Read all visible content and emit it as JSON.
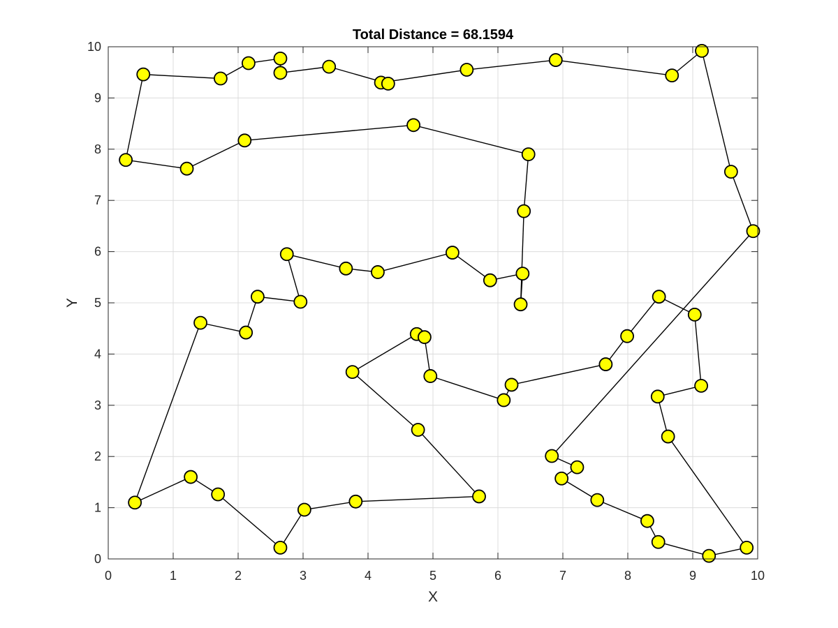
{
  "chart_data": {
    "type": "line",
    "title": "Total Distance = 68.1594",
    "xlabel": "X",
    "ylabel": "Y",
    "xlim": [
      0,
      10
    ],
    "ylim": [
      0,
      10
    ],
    "xticks": [
      "0",
      "1",
      "2",
      "3",
      "4",
      "5",
      "6",
      "7",
      "8",
      "9",
      "10"
    ],
    "yticks": [
      "0",
      "1",
      "2",
      "3",
      "4",
      "5",
      "6",
      "7",
      "8",
      "9",
      "10"
    ],
    "grid": true,
    "line_color": "#000000",
    "marker_color": "#ffff00",
    "marker_edge_color": "#000000",
    "series": [
      {
        "points": [
          [
            6.35,
            4.97
          ],
          [
            6.38,
            5.57
          ],
          [
            5.88,
            5.44
          ],
          [
            5.3,
            5.98
          ],
          [
            4.15,
            5.6
          ],
          [
            3.66,
            5.67
          ],
          [
            2.75,
            5.95
          ],
          [
            2.96,
            5.02
          ],
          [
            2.3,
            5.12
          ],
          [
            2.12,
            4.42
          ],
          [
            1.42,
            4.61
          ],
          [
            0.41,
            1.1
          ],
          [
            1.27,
            1.6
          ],
          [
            1.69,
            1.26
          ],
          [
            2.65,
            0.22
          ],
          [
            3.02,
            0.96
          ],
          [
            3.81,
            1.12
          ],
          [
            5.71,
            1.22
          ],
          [
            4.77,
            2.52
          ],
          [
            3.76,
            3.65
          ],
          [
            4.75,
            4.39
          ],
          [
            4.87,
            4.33
          ],
          [
            4.96,
            3.57
          ],
          [
            6.09,
            3.1
          ],
          [
            6.21,
            3.4
          ],
          [
            7.66,
            3.8
          ],
          [
            7.99,
            4.35
          ],
          [
            8.48,
            5.12
          ],
          [
            9.03,
            4.77
          ],
          [
            9.13,
            3.38
          ],
          [
            8.46,
            3.17
          ],
          [
            8.62,
            2.39
          ],
          [
            9.83,
            0.22
          ],
          [
            9.25,
            0.06
          ],
          [
            8.47,
            0.33
          ],
          [
            8.3,
            0.74
          ],
          [
            7.53,
            1.15
          ],
          [
            6.98,
            1.57
          ],
          [
            7.22,
            1.79
          ],
          [
            6.83,
            2.01
          ],
          [
            9.93,
            6.4
          ],
          [
            9.59,
            7.56
          ],
          [
            9.14,
            9.92
          ],
          [
            8.68,
            9.44
          ],
          [
            6.89,
            9.74
          ],
          [
            5.52,
            9.55
          ],
          [
            4.2,
            9.3
          ],
          [
            4.31,
            9.28
          ],
          [
            3.4,
            9.61
          ],
          [
            2.65,
            9.49
          ],
          [
            2.65,
            9.77
          ],
          [
            2.16,
            9.68
          ],
          [
            1.73,
            9.38
          ],
          [
            0.54,
            9.46
          ],
          [
            0.27,
            7.79
          ],
          [
            1.21,
            7.62
          ],
          [
            2.1,
            8.17
          ],
          [
            4.7,
            8.47
          ],
          [
            6.47,
            7.9
          ],
          [
            6.4,
            6.79
          ],
          [
            6.35,
            4.97
          ]
        ]
      }
    ]
  }
}
